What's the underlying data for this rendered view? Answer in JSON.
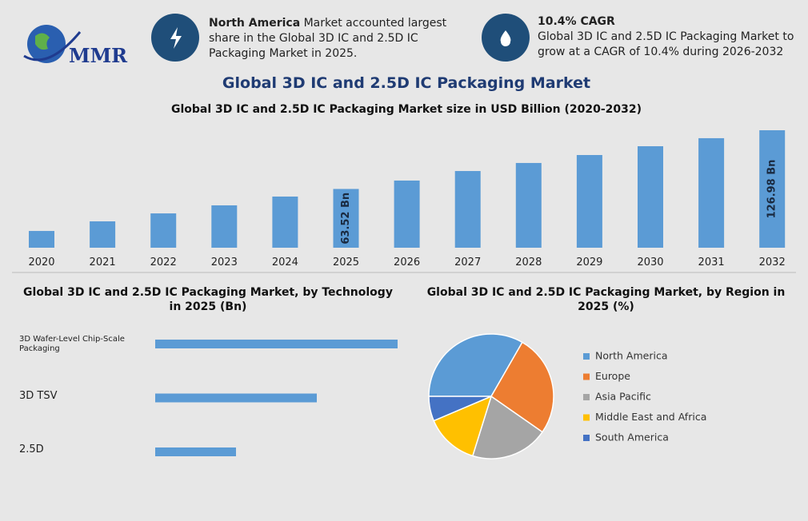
{
  "header": {
    "logo": "MMR",
    "info": [
      {
        "bold": "North America",
        "text": "Market accounted largest share in the Global 3D IC and 2.5D IC Packaging Market in 2025."
      },
      {
        "bold": "10.4% CAGR",
        "text": "Global 3D IC and 2.5D IC Packaging Market to grow at a CAGR of 10.4% during 2026-2032"
      }
    ]
  },
  "title": "Global 3D IC and 2.5D IC Packaging Market",
  "chart_data": [
    {
      "type": "bar",
      "title": "Global 3D IC and 2.5D IC Packaging Market size in USD Billion (2020-2032)",
      "categories": [
        "2020",
        "2021",
        "2022",
        "2023",
        "2024",
        "2025",
        "2026",
        "2027",
        "2028",
        "2029",
        "2030",
        "2031",
        "2032"
      ],
      "values": [
        18.1,
        28.5,
        37.1,
        45.8,
        55.3,
        63.52,
        72.6,
        82.9,
        91.6,
        100.2,
        109.7,
        118.4,
        126.98
      ],
      "value_labels": [
        null,
        null,
        null,
        null,
        null,
        "63.52 Bn",
        null,
        null,
        null,
        null,
        null,
        null,
        "126.98 Bn"
      ],
      "color": "#5b9bd5"
    },
    {
      "type": "hbar",
      "title": "Global 3D IC and 2.5D IC Packaging Market, by Technology in 2025 (Bn)",
      "categories": [
        "3D Wafer-Level Chip-Scale Packaging",
        "3D TSV",
        "2.5D"
      ],
      "values": [
        3.0,
        2.0,
        1.0
      ],
      "color": "#5b9bd5"
    },
    {
      "type": "pie",
      "title": "Global 3D IC and 2.5D IC Packaging Market, by Region in 2025 (%)",
      "categories": [
        "North America",
        "Europe",
        "Asia Pacific",
        "Middle East and Africa",
        "South America"
      ],
      "values": [
        33.3,
        26.4,
        20.1,
        13.8,
        6.4
      ],
      "colors": [
        "#5b9bd5",
        "#ed7d31",
        "#a5a5a5",
        "#ffc000",
        "#4472c4"
      ]
    }
  ]
}
